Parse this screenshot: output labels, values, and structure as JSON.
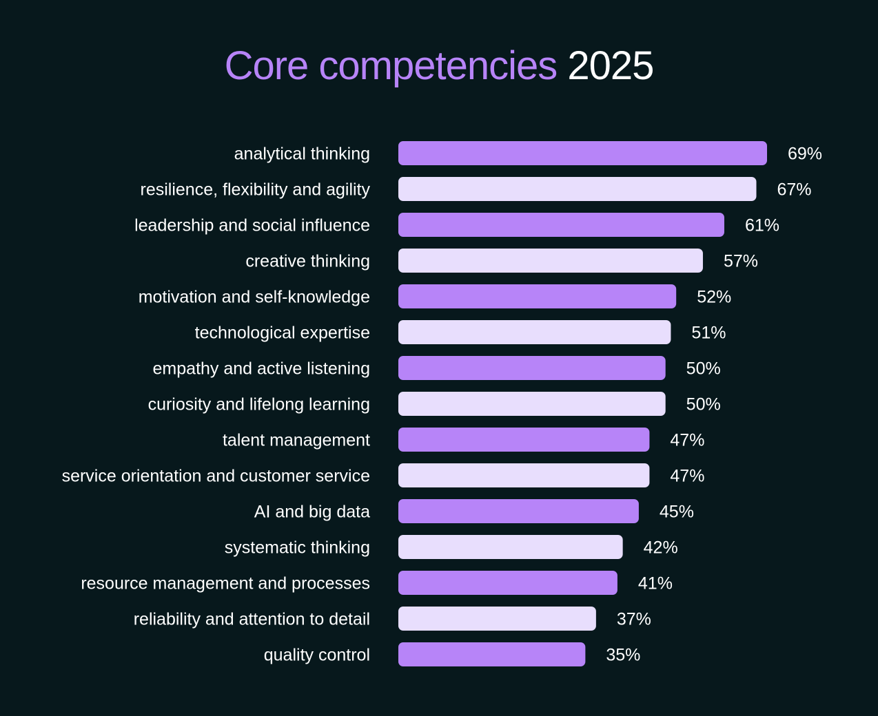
{
  "title": {
    "accent": "Core competencies",
    "plain": "2025"
  },
  "colors": {
    "background": "#07181c",
    "bar_primary": "#b784f8",
    "bar_secondary": "#e8defd",
    "title_accent": "#b784f8",
    "text": "#ffffff"
  },
  "chart_data": {
    "type": "bar",
    "orientation": "horizontal",
    "title": "Core competencies 2025",
    "xlabel": "",
    "ylabel": "",
    "grid": false,
    "legend": "none",
    "value_suffix": "%",
    "categories": [
      "analytical thinking",
      "resilience, flexibility and agility",
      "leadership and social influence",
      "creative thinking",
      "motivation and self-knowledge",
      "technological expertise",
      "empathy and active listening",
      "curiosity and lifelong learning",
      "talent management",
      "service orientation and customer service",
      "AI and big data",
      "systematic thinking",
      "resource management and processes",
      "reliability and attention to detail",
      "quality control"
    ],
    "values": [
      69,
      67,
      61,
      57,
      52,
      51,
      50,
      50,
      47,
      47,
      45,
      42,
      41,
      37,
      35
    ],
    "value_labels": [
      "69%",
      "67%",
      "61%",
      "57%",
      "52%",
      "51%",
      "50%",
      "50%",
      "47%",
      "47%",
      "45%",
      "42%",
      "41%",
      "37%",
      "35%"
    ],
    "bar_color_pattern": [
      "primary",
      "secondary"
    ]
  }
}
